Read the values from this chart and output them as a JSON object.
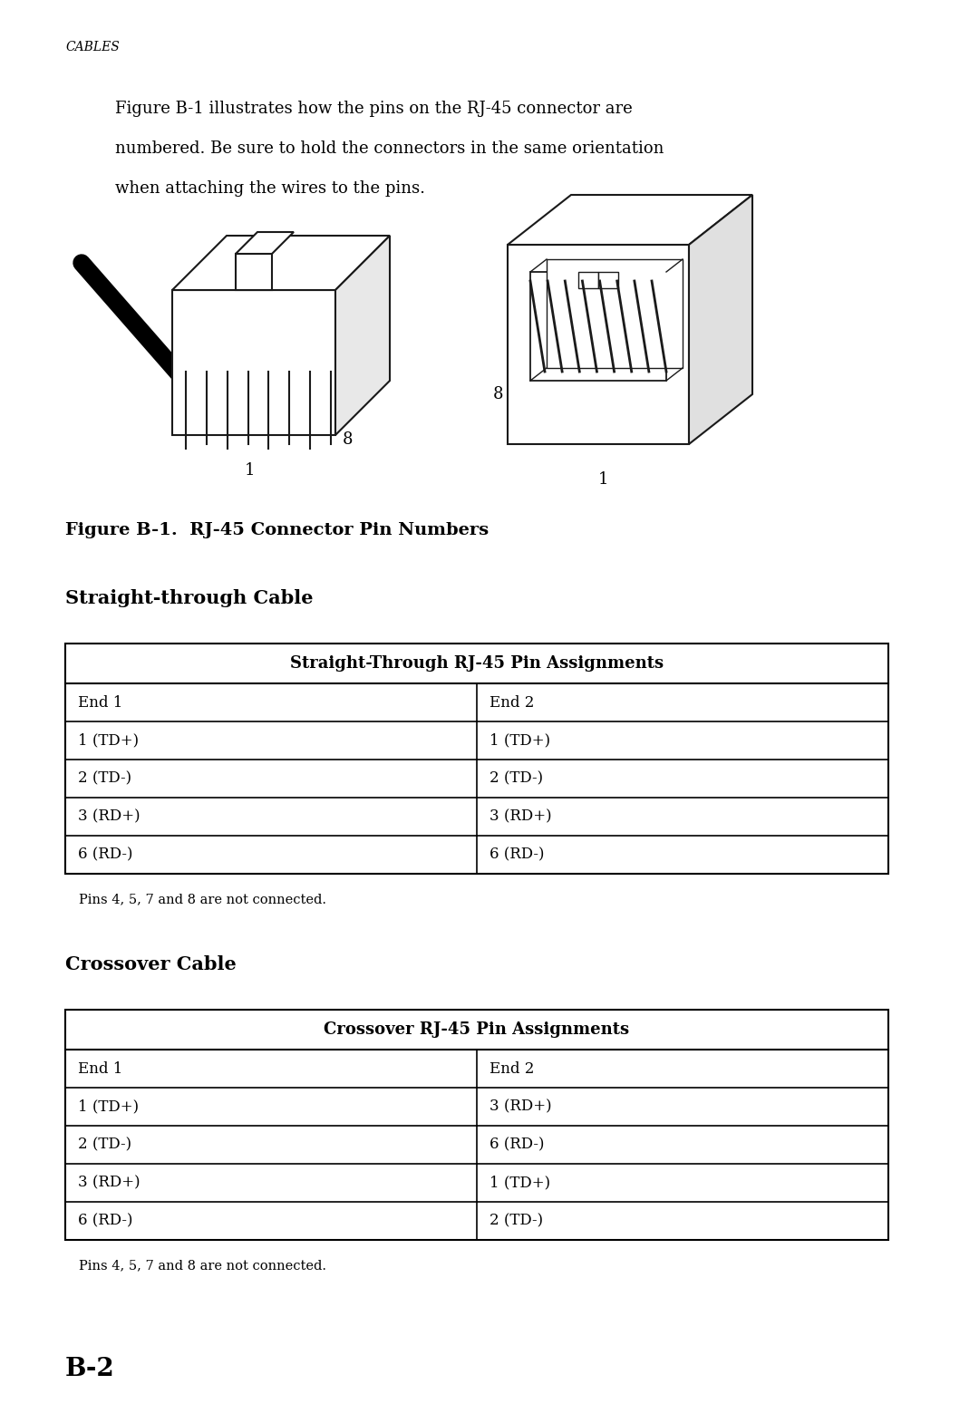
{
  "page_bg": "#ffffff",
  "header_text": "CABLES",
  "intro_text": "Figure B-1 illustrates how the pins on the RJ-45 connector are\nnumbered. Be sure to hold the connectors in the same orientation\nwhen attaching the wires to the pins.",
  "figure_caption": "Figure B-1.  RJ-45 Connector Pin Numbers",
  "section1_title": "Straight-through Cable",
  "table1_header": "Straight-Through RJ-45 Pin Assignments",
  "table1_col_headers": [
    "End 1",
    "End 2"
  ],
  "table1_rows": [
    [
      "1 (TD+)",
      "1 (TD+)"
    ],
    [
      "2 (TD-)",
      "2 (TD-)"
    ],
    [
      "3 (RD+)",
      "3 (RD+)"
    ],
    [
      "6 (RD-)",
      "6 (RD-)"
    ]
  ],
  "table1_note": "Pins 4, 5, 7 and 8 are not connected.",
  "section2_title": "Crossover Cable",
  "table2_header": "Crossover RJ-45 Pin Assignments",
  "table2_col_headers": [
    "End 1",
    "End 2"
  ],
  "table2_rows": [
    [
      "1 (TD+)",
      "3 (RD+)"
    ],
    [
      "2 (TD-)",
      "6 (RD-)"
    ],
    [
      "3 (RD+)",
      "1 (TD+)"
    ],
    [
      "6 (RD-)",
      "2 (TD-)"
    ]
  ],
  "table2_note": "Pins 4, 5, 7 and 8 are not connected.",
  "page_number": "B-2",
  "text_color": "#000000",
  "table_border_color": "#000000"
}
